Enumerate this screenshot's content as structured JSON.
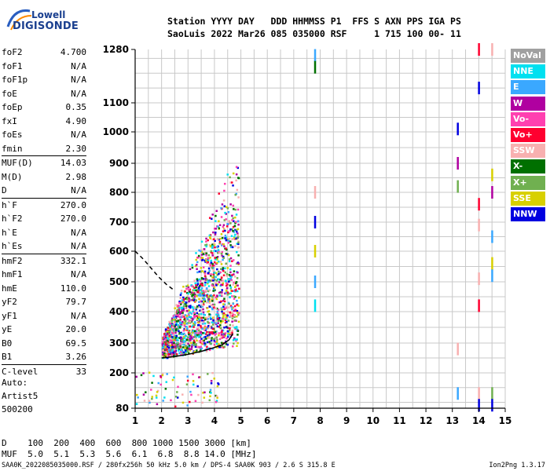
{
  "logo": {
    "line1": "Lowell",
    "line2": "DIGISONDE"
  },
  "header": {
    "line1": "Station YYYY DAY   DDD HHMMSS P1  FFS S AXN PPS IGA PS",
    "line2": "SaoLuis 2022 Mar26 085 035000 RSF     1 715 100 00- 11"
  },
  "parameters": [
    {
      "k": "foF2",
      "v": "4.700"
    },
    {
      "k": "foF1",
      "v": "N/A"
    },
    {
      "k": "foF1p",
      "v": "N/A"
    },
    {
      "k": "foE",
      "v": "N/A"
    },
    {
      "k": "foEp",
      "v": "0.35"
    },
    {
      "k": "fxI",
      "v": "4.90"
    },
    {
      "k": "foEs",
      "v": "N/A"
    },
    {
      "k": "fmin",
      "v": "2.30"
    },
    {
      "k": "MUF(D)",
      "v": "14.03"
    },
    {
      "k": "M(D)",
      "v": "2.98"
    },
    {
      "k": "D",
      "v": "N/A"
    },
    {
      "k": "h`F",
      "v": "270.0"
    },
    {
      "k": "h`F2",
      "v": "270.0"
    },
    {
      "k": "h`E",
      "v": "N/A"
    },
    {
      "k": "h`Es",
      "v": "N/A"
    },
    {
      "k": "hmF2",
      "v": "332.1"
    },
    {
      "k": "hmF1",
      "v": "N/A"
    },
    {
      "k": "hmE",
      "v": "110.0"
    },
    {
      "k": "yF2",
      "v": "79.7"
    },
    {
      "k": "yF1",
      "v": "N/A"
    },
    {
      "k": "yE",
      "v": "20.0"
    },
    {
      "k": "B0",
      "v": "69.5"
    },
    {
      "k": "B1",
      "v": "3.26"
    },
    {
      "k": "C-level",
      "v": "33"
    }
  ],
  "autoscale": {
    "line1": "Auto:",
    "line2": "Artist5",
    "line3": "500200"
  },
  "bottom": {
    "d_row": "D    100  200  400  600  800 1000 1500 3000 [km]",
    "muf_row": "MUF  5.0  5.1  5.3  5.6  6.1  6.8  8.8 14.0 [MHz]",
    "footer": "SAA0K_2022085035000.RSF / 280fx256h 50 kHz 5.0 km / DPS-4 SAA0K 903 / 2.6 S 315.8 E",
    "version": "Ion2Png 1.3.17"
  },
  "legend": [
    {
      "label": "NoVal",
      "color": "#a0a0a0"
    },
    {
      "label": "NNE",
      "color": "#00e0f0"
    },
    {
      "label": "E",
      "color": "#3aa8ff"
    },
    {
      "label": "W",
      "color": "#b000a0"
    },
    {
      "label": "Vo-",
      "color": "#ff40b0"
    },
    {
      "label": "Vo+",
      "color": "#ff0030"
    },
    {
      "label": "SSW",
      "color": "#f8b0b0"
    },
    {
      "label": "X-",
      "color": "#007000"
    },
    {
      "label": "X+",
      "color": "#70b050"
    },
    {
      "label": "SSE",
      "color": "#d8d000"
    },
    {
      "label": "NNW",
      "color": "#0000e0"
    }
  ],
  "chart_data": {
    "type": "scatter",
    "title": "",
    "xlabel": "",
    "ylabel": "",
    "xlim": [
      1,
      15
    ],
    "ylim": [
      80,
      1280
    ],
    "x_ticks": [
      "1",
      "2",
      "3",
      "4",
      "5",
      "6",
      "7",
      "8",
      "9",
      "10",
      "11",
      "12",
      "13",
      "14",
      "15"
    ],
    "y_ticks": [
      "80",
      "200",
      "300",
      "400",
      "500",
      "600",
      "700",
      "800",
      "900",
      "1000",
      "1100",
      "1280"
    ],
    "grid": true,
    "legend_position": "right",
    "series": [
      {
        "name": "O-trace",
        "points": [
          [
            2.0,
            250
          ],
          [
            2.5,
            255
          ],
          [
            3.0,
            262
          ],
          [
            3.5,
            272
          ],
          [
            4.0,
            285
          ],
          [
            4.3,
            295
          ],
          [
            4.55,
            310
          ],
          [
            4.7,
            330
          ]
        ]
      },
      {
        "name": "modeled-profile",
        "points": [
          [
            1.0,
            600
          ],
          [
            1.3,
            575
          ],
          [
            1.6,
            545
          ],
          [
            1.9,
            515
          ],
          [
            2.2,
            490
          ],
          [
            2.5,
            470
          ]
        ]
      },
      {
        "name": "vertical-echoes-7.8MHz",
        "points": [
          [
            7.8,
            1260
          ],
          [
            7.8,
            1220
          ],
          [
            7.8,
            800
          ],
          [
            7.8,
            700
          ],
          [
            7.8,
            600
          ],
          [
            7.8,
            500
          ],
          [
            7.8,
            420
          ]
        ]
      },
      {
        "name": "vertical-echoes-13.2MHz",
        "points": [
          [
            13.2,
            1010
          ],
          [
            13.2,
            900
          ],
          [
            13.2,
            820
          ],
          [
            13.2,
            280
          ],
          [
            13.2,
            130
          ]
        ]
      },
      {
        "name": "vertical-echoes-14MHz",
        "points": [
          [
            14.0,
            1280
          ],
          [
            14.0,
            1150
          ],
          [
            14.0,
            760
          ],
          [
            14.0,
            690
          ],
          [
            14.0,
            510
          ],
          [
            14.0,
            420
          ],
          [
            14.0,
            130
          ],
          [
            14.0,
            90
          ]
        ]
      },
      {
        "name": "vertical-echoes-14.5MHz",
        "points": [
          [
            14.5,
            1280
          ],
          [
            14.5,
            860
          ],
          [
            14.5,
            800
          ],
          [
            14.5,
            650
          ],
          [
            14.5,
            560
          ],
          [
            14.5,
            520
          ],
          [
            14.5,
            130
          ],
          [
            14.5,
            90
          ]
        ]
      }
    ]
  }
}
